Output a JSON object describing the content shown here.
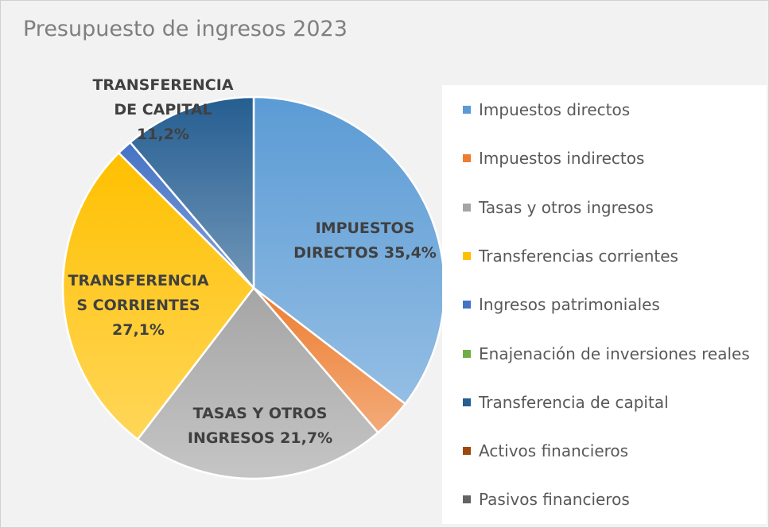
{
  "chart_data": {
    "type": "pie",
    "title": "Presupuesto de ingresos 2023",
    "categories": [
      "Impuestos directos",
      "Impuestos indirectos",
      "Tasas y otros ingresos",
      "Transferencias corrientes",
      "Ingresos patrimoniales",
      "Enajenación de inversiones reales",
      "Transferencia de capital",
      "Activos financieros",
      "Pasivos financieros"
    ],
    "values": [
      35.4,
      3.3,
      21.7,
      27.1,
      1.3,
      0,
      11.2,
      0,
      0
    ],
    "colors": [
      "#5b9bd5",
      "#ed7d31",
      "#a5a5a5",
      "#ffc000",
      "#4472c4",
      "#70ad47",
      "#255e91",
      "#9e480e",
      "#636363"
    ],
    "data_labels": [
      [
        "IMPUESTOS",
        "DIRECTOS 35,4%"
      ],
      null,
      [
        "TASAS Y OTROS",
        "INGRESOS 21,7%"
      ],
      [
        "TRANSFERENCIA",
        "S CORRIENTES",
        "27,1%"
      ],
      null,
      null,
      [
        "TRANSFERENCIA",
        "DE CAPITAL",
        "11,2%"
      ],
      null,
      null
    ],
    "legend_position": "right"
  }
}
